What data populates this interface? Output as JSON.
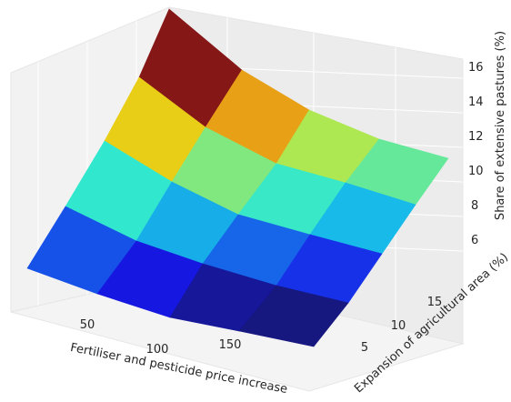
{
  "chart_data": {
    "type": "surface3d",
    "title": "",
    "xlabel": "Fertiliser and pesticide price increase",
    "ylabel": "Expansion of agricultural area (%)",
    "zlabel": "Share of extensive pastures (%)",
    "x_ticks": [
      "50",
      "100",
      "150"
    ],
    "y_ticks": [
      "5",
      "10",
      "15"
    ],
    "z_ticks": [
      "6",
      "8",
      "10",
      "12",
      "14",
      "16"
    ],
    "zlim": [
      4.6,
      17.4
    ],
    "grid": true,
    "colormap": "jet",
    "cells": {
      "description_rows": "rows ordered from front (low x) to back (high x); columns ordered from left (high y) to right (low y)",
      "values": [
        [
          7.1,
          6.1,
          5.0,
          4.0
        ],
        [
          9.8,
          8.5,
          7.4,
          6.6
        ],
        [
          13.0,
          11.0,
          9.9,
          8.7
        ],
        [
          17.3,
          13.7,
          11.7,
          10.6
        ]
      ]
    }
  }
}
